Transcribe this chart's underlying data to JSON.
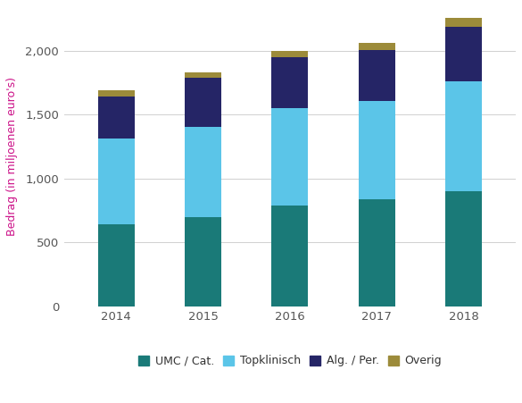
{
  "years": [
    "2014",
    "2015",
    "2016",
    "2017",
    "2018"
  ],
  "umc_cat": [
    640,
    695,
    790,
    840,
    900
  ],
  "topklinisch": [
    670,
    710,
    760,
    770,
    860
  ],
  "alg_per": [
    330,
    385,
    400,
    395,
    430
  ],
  "overig": [
    50,
    45,
    50,
    55,
    70
  ],
  "colors": {
    "umc_cat": "#1a7a78",
    "topklinisch": "#5bc5e8",
    "alg_per": "#252566",
    "overig": "#9c8b3a"
  },
  "ylabel": "Bedrag (in miljoenen euro's)",
  "ylim": [
    0,
    2350
  ],
  "yticks": [
    0,
    500,
    1000,
    1500,
    2000
  ],
  "legend_labels": [
    "UMC / Cat.",
    "Topklinisch",
    "Alg. / Per.",
    "Overig"
  ],
  "bar_width": 0.42,
  "background_color": "#ffffff",
  "grid_color": "#d0d0d0"
}
